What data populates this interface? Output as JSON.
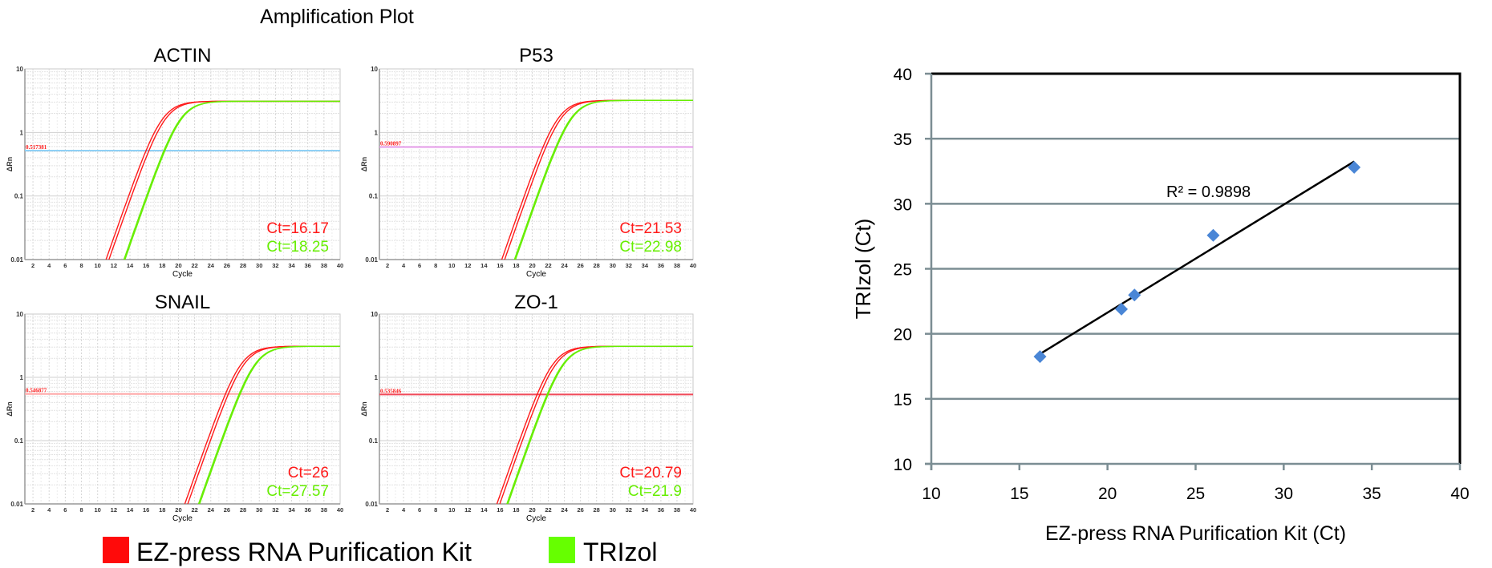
{
  "figure": {
    "title": "Amplification Plot"
  },
  "legend": {
    "items": [
      {
        "label": "EZ-press RNA Purification Kit",
        "color": "#ff0a0a"
      },
      {
        "label": "TRIzol",
        "color": "#66ff00"
      }
    ]
  },
  "chart_data": [
    {
      "type": "line",
      "title": "ACTIN",
      "xlabel": "Cycle",
      "ylabel": "ΔRn",
      "yscale": "log",
      "xlim": [
        1,
        40
      ],
      "ylim": [
        0.01,
        10
      ],
      "grid": true,
      "x_ticks": [
        2,
        4,
        6,
        8,
        10,
        12,
        14,
        16,
        18,
        20,
        22,
        24,
        26,
        28,
        30,
        32,
        34,
        36,
        38,
        40
      ],
      "y_ticks": [
        "0.01",
        "0.1",
        "1",
        "10"
      ],
      "plateau": 3.1,
      "threshold": {
        "value": 0.517381,
        "label": "0.517381",
        "color": "#8fd0f5"
      },
      "series": [
        {
          "name": "EZ-press RNA Purification Kit",
          "ct": 16.17,
          "ct_label": "Ct=16.17",
          "color": "#ff1a1a"
        },
        {
          "name": "TRIzol",
          "ct": 18.25,
          "ct_label": "Ct=18.25",
          "color": "#66ee00"
        }
      ]
    },
    {
      "type": "line",
      "title": "P53",
      "xlabel": "Cycle",
      "ylabel": "ΔRn",
      "yscale": "log",
      "xlim": [
        1,
        40
      ],
      "ylim": [
        0.01,
        10
      ],
      "grid": true,
      "x_ticks": [
        2,
        4,
        6,
        8,
        10,
        12,
        14,
        16,
        18,
        20,
        22,
        24,
        26,
        28,
        30,
        32,
        34,
        36,
        38,
        40
      ],
      "y_ticks": [
        "0.01",
        "0.1",
        "1",
        "10"
      ],
      "plateau": 3.2,
      "threshold": {
        "value": 0.590897,
        "label": "0.590897",
        "color": "#e49ae8"
      },
      "series": [
        {
          "name": "EZ-press RNA Purification Kit",
          "ct": 21.53,
          "ct_label": "Ct=21.53",
          "color": "#ff1a1a"
        },
        {
          "name": "TRIzol",
          "ct": 22.98,
          "ct_label": "Ct=22.98",
          "color": "#66ee00"
        }
      ]
    },
    {
      "type": "line",
      "title": "SNAIL",
      "xlabel": "Cycle",
      "ylabel": "ΔRn",
      "yscale": "log",
      "xlim": [
        1,
        40
      ],
      "ylim": [
        0.01,
        10
      ],
      "grid": true,
      "x_ticks": [
        2,
        4,
        6,
        8,
        10,
        12,
        14,
        16,
        18,
        20,
        22,
        24,
        26,
        28,
        30,
        32,
        34,
        36,
        38,
        40
      ],
      "y_ticks": [
        "0.01",
        "0.1",
        "1",
        "10"
      ],
      "plateau": 3.1,
      "threshold": {
        "value": 0.546877,
        "label": "0.546877",
        "color": "#ffa8a8"
      },
      "series": [
        {
          "name": "EZ-press RNA Purification Kit",
          "ct": 26,
          "ct_label": "Ct=26",
          "color": "#ff1a1a"
        },
        {
          "name": "TRIzol",
          "ct": 27.57,
          "ct_label": "Ct=27.57",
          "color": "#66ee00"
        }
      ]
    },
    {
      "type": "line",
      "title": "ZO-1",
      "xlabel": "Cycle",
      "ylabel": "ΔRn",
      "yscale": "log",
      "xlim": [
        1,
        40
      ],
      "ylim": [
        0.01,
        10
      ],
      "grid": true,
      "x_ticks": [
        2,
        4,
        6,
        8,
        10,
        12,
        14,
        16,
        18,
        20,
        22,
        24,
        26,
        28,
        30,
        32,
        34,
        36,
        38,
        40
      ],
      "y_ticks": [
        "0.01",
        "0.1",
        "1",
        "10"
      ],
      "plateau": 3.1,
      "threshold": {
        "value": 0.535846,
        "label": "0.535846",
        "color": "#f04a5a"
      },
      "series": [
        {
          "name": "EZ-press RNA Purification Kit",
          "ct": 20.79,
          "ct_label": "Ct=20.79",
          "color": "#ff1a1a"
        },
        {
          "name": "TRIzol",
          "ct": 21.9,
          "ct_label": "Ct=21.9",
          "color": "#66ee00"
        }
      ]
    },
    {
      "type": "scatter",
      "xlabel": "EZ-press RNA Purification Kit (Ct)",
      "ylabel": "TRIzol (Ct)",
      "xlim": [
        10,
        40
      ],
      "ylim": [
        10,
        40
      ],
      "x_ticks": [
        10,
        15,
        20,
        25,
        30,
        35,
        40
      ],
      "y_ticks": [
        10,
        15,
        20,
        25,
        30,
        35,
        40
      ],
      "grid": "horizontal",
      "point_color": "#4a86d6",
      "points": [
        {
          "x": 16.17,
          "y": 18.25
        },
        {
          "x": 20.79,
          "y": 21.9
        },
        {
          "x": 21.53,
          "y": 22.98
        },
        {
          "x": 26,
          "y": 27.57
        },
        {
          "x": 34,
          "y": 32.8
        }
      ],
      "trendline": {
        "type": "linear",
        "label": "R² = 0.9898",
        "color": "#000000"
      }
    }
  ]
}
